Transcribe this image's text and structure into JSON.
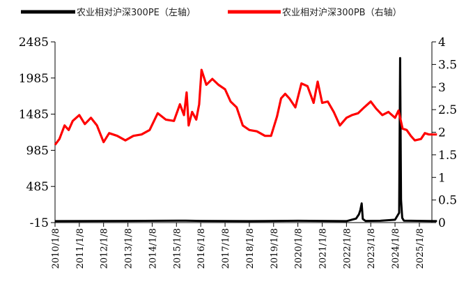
{
  "chart_data": {
    "type": "line",
    "legend_position": "top",
    "grid": false,
    "x_tick_labels": [
      "2010/1/8",
      "2011/1/8",
      "2012/1/8",
      "2013/1/8",
      "2014/1/8",
      "2015/1/8",
      "2016/1/8",
      "2017/1/8",
      "2018/1/8",
      "2019/1/8",
      "2020/1/8",
      "2021/1/8",
      "2022/1/8",
      "2023/1/8",
      "2024/1/8",
      "2025/1/8"
    ],
    "y_left": {
      "ylim": [
        -15,
        2485
      ],
      "ticks": [
        "2485",
        "1985",
        "1485",
        "985",
        "485",
        "-15"
      ]
    },
    "y_right": {
      "ylim": [
        0,
        4
      ],
      "ticks": [
        "4",
        "3.5",
        "3",
        "2.5",
        "2",
        "1.5",
        "1",
        "0.5",
        "0"
      ]
    },
    "series": [
      {
        "name": "农业相对沪深300PE（左轴）",
        "axis": "left",
        "color": "#000000",
        "points": [
          [
            "2010/1/8",
            5
          ],
          [
            "2013/1/8",
            8
          ],
          [
            "2015/6/1",
            12
          ],
          [
            "2016/1/8",
            8
          ],
          [
            "2018/1/8",
            5
          ],
          [
            "2020/1/8",
            10
          ],
          [
            "2022/1/8",
            5
          ],
          [
            "2022/6/1",
            40
          ],
          [
            "2022/7/15",
            100
          ],
          [
            "2022/8/5",
            160
          ],
          [
            "2022/8/25",
            250
          ],
          [
            "2022/9/10",
            35
          ],
          [
            "2022/10/20",
            8
          ],
          [
            "2023/6/1",
            10
          ],
          [
            "2024/1/8",
            25
          ],
          [
            "2024/3/10",
            120
          ],
          [
            "2024/3/25",
            2260
          ],
          [
            "2024/4/8",
            300
          ],
          [
            "2024/4/25",
            50
          ],
          [
            "2024/5/20",
            12
          ],
          [
            "2025/9/30",
            5
          ]
        ]
      },
      {
        "name": "农业相对沪深300PB（右轴）",
        "axis": "right",
        "color": "#ff0000",
        "points": [
          [
            "2010/1/8",
            1.72
          ],
          [
            "2010/3/15",
            1.85
          ],
          [
            "2010/6/1",
            2.15
          ],
          [
            "2010/8/1",
            2.05
          ],
          [
            "2010/10/1",
            2.25
          ],
          [
            "2011/1/8",
            2.38
          ],
          [
            "2011/4/1",
            2.18
          ],
          [
            "2011/7/1",
            2.32
          ],
          [
            "2011/10/1",
            2.15
          ],
          [
            "2012/1/8",
            1.78
          ],
          [
            "2012/4/1",
            1.98
          ],
          [
            "2012/8/1",
            1.92
          ],
          [
            "2012/12/1",
            1.82
          ],
          [
            "2013/4/1",
            1.92
          ],
          [
            "2013/8/1",
            1.95
          ],
          [
            "2013/12/1",
            2.05
          ],
          [
            "2014/4/1",
            2.42
          ],
          [
            "2014/8/1",
            2.28
          ],
          [
            "2014/12/1",
            2.25
          ],
          [
            "2015/3/1",
            2.62
          ],
          [
            "2015/5/1",
            2.38
          ],
          [
            "2015/6/10",
            2.88
          ],
          [
            "2015/7/10",
            2.15
          ],
          [
            "2015/9/1",
            2.45
          ],
          [
            "2015/11/1",
            2.28
          ],
          [
            "2015/12/15",
            2.62
          ],
          [
            "2016/1/20",
            3.38
          ],
          [
            "2016/4/1",
            3.05
          ],
          [
            "2016/7/1",
            3.18
          ],
          [
            "2016/10/1",
            3.05
          ],
          [
            "2017/1/8",
            2.95
          ],
          [
            "2017/4/1",
            2.68
          ],
          [
            "2017/7/1",
            2.55
          ],
          [
            "2017/10/1",
            2.15
          ],
          [
            "2018/1/8",
            2.05
          ],
          [
            "2018/5/1",
            2.02
          ],
          [
            "2018/9/1",
            1.92
          ],
          [
            "2018/12/1",
            1.92
          ],
          [
            "2019/3/1",
            2.35
          ],
          [
            "2019/5/1",
            2.75
          ],
          [
            "2019/7/1",
            2.85
          ],
          [
            "2019/9/1",
            2.75
          ],
          [
            "2019/12/1",
            2.55
          ],
          [
            "2020/3/1",
            3.08
          ],
          [
            "2020/6/1",
            3.02
          ],
          [
            "2020/9/1",
            2.65
          ],
          [
            "2020/11/1",
            3.12
          ],
          [
            "2021/1/8",
            2.65
          ],
          [
            "2021/4/1",
            2.68
          ],
          [
            "2021/7/1",
            2.45
          ],
          [
            "2021/10/1",
            2.15
          ],
          [
            "2022/1/8",
            2.32
          ],
          [
            "2022/4/1",
            2.38
          ],
          [
            "2022/7/1",
            2.42
          ],
          [
            "2022/10/1",
            2.55
          ],
          [
            "2023/1/8",
            2.68
          ],
          [
            "2023/4/1",
            2.52
          ],
          [
            "2023/7/1",
            2.38
          ],
          [
            "2023/10/1",
            2.45
          ],
          [
            "2024/1/8",
            2.32
          ],
          [
            "2024/3/1",
            2.48
          ],
          [
            "2024/5/1",
            2.08
          ],
          [
            "2024/7/1",
            2.05
          ],
          [
            "2024/9/1",
            1.92
          ],
          [
            "2024/11/1",
            1.82
          ],
          [
            "2025/2/1",
            1.85
          ],
          [
            "2025/4/1",
            1.98
          ],
          [
            "2025/6/1",
            1.95
          ],
          [
            "2025/9/30",
            1.95
          ]
        ]
      }
    ]
  }
}
